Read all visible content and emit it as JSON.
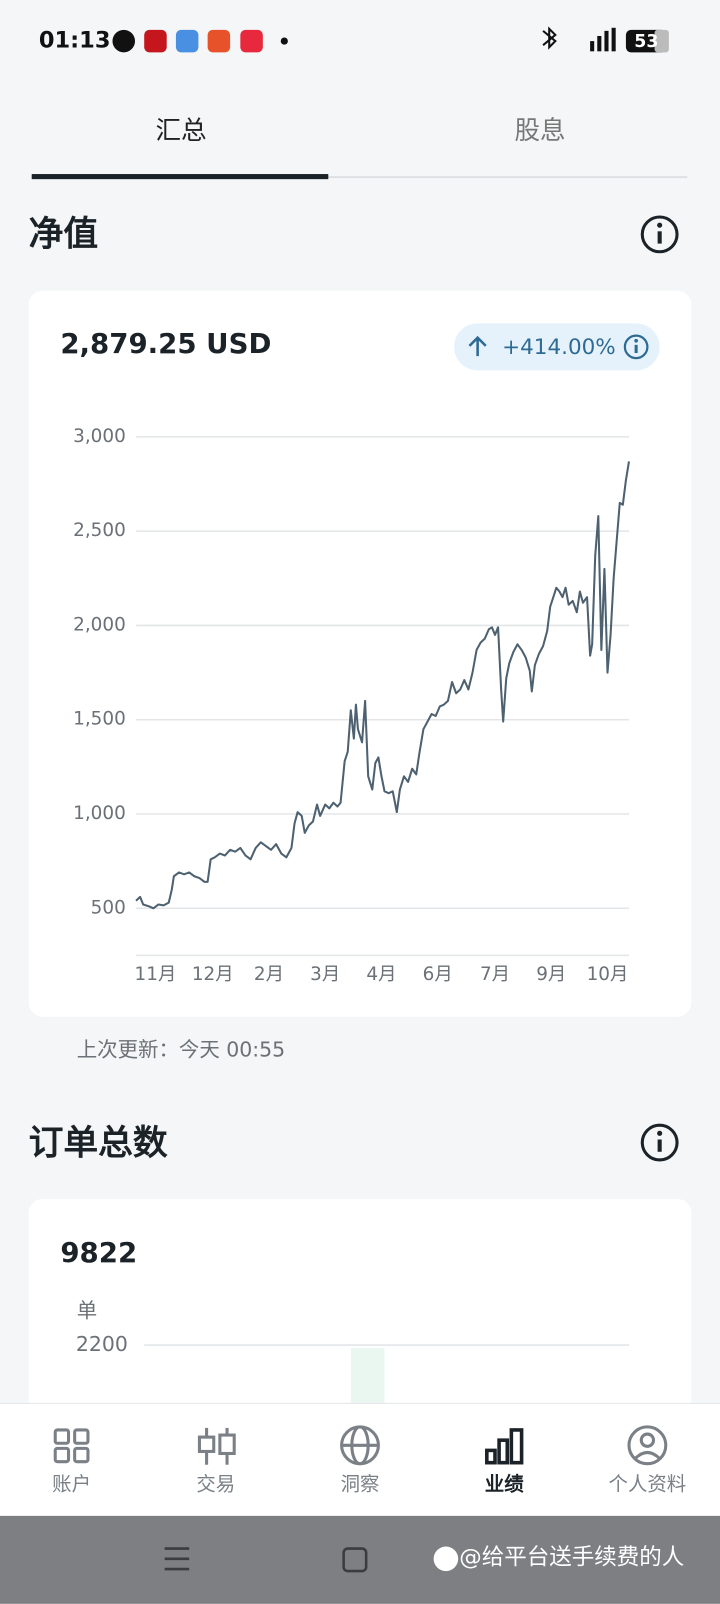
{
  "status_bar": {
    "time": "01:13",
    "battery": "53"
  },
  "tabs": [
    "汇总",
    "股息"
  ],
  "net_value": {
    "title": "净值",
    "amount": "2,879.25 USD",
    "change": "+414.00%",
    "updated": "上次更新：今天 00:55",
    "chart_data": {
      "type": "line",
      "color": "#4d6170",
      "grid": true,
      "x": [
        0,
        4,
        7,
        13,
        17,
        22,
        27,
        32,
        35,
        37,
        42,
        47,
        52,
        57,
        62,
        67,
        70,
        73,
        77,
        82,
        87,
        92,
        97,
        102,
        107,
        112,
        117,
        122,
        127,
        132,
        137,
        142,
        147,
        152,
        155,
        158,
        162,
        165,
        169,
        173,
        177,
        180,
        185,
        189,
        193,
        197,
        200,
        204,
        207,
        210,
        213,
        215,
        217,
        221,
        224,
        227,
        231,
        234,
        237,
        240,
        243,
        247,
        251,
        255,
        258,
        262,
        266,
        270,
        274,
        277,
        281,
        285,
        289,
        293,
        297,
        301,
        305,
        309,
        313,
        317,
        321,
        325,
        329,
        333,
        337,
        341,
        345,
        348,
        351,
        354,
        357,
        359,
        362,
        365,
        369,
        373,
        377,
        381,
        385,
        387,
        390,
        394,
        398,
        402,
        405,
        408,
        411,
        414,
        417,
        420,
        423,
        427,
        431,
        434,
        437,
        441,
        444,
        446,
        449,
        452,
        455,
        458,
        461,
        464,
        467,
        470,
        473,
        476,
        479,
        482
      ],
      "values": [
        540,
        560,
        520,
        510,
        500,
        520,
        515,
        530,
        600,
        670,
        690,
        680,
        690,
        670,
        660,
        640,
        640,
        760,
        770,
        790,
        780,
        810,
        800,
        820,
        780,
        760,
        820,
        850,
        830,
        810,
        840,
        790,
        770,
        820,
        950,
        1010,
        990,
        900,
        940,
        960,
        1050,
        990,
        1050,
        1030,
        1060,
        1040,
        1060,
        1280,
        1330,
        1550,
        1400,
        1580,
        1450,
        1380,
        1600,
        1200,
        1130,
        1270,
        1300,
        1200,
        1120,
        1110,
        1120,
        1010,
        1130,
        1200,
        1170,
        1240,
        1210,
        1320,
        1450,
        1490,
        1530,
        1520,
        1570,
        1580,
        1600,
        1700,
        1640,
        1660,
        1710,
        1660,
        1750,
        1870,
        1910,
        1930,
        1980,
        1990,
        1950,
        1990,
        1660,
        1490,
        1720,
        1800,
        1860,
        1900,
        1870,
        1830,
        1760,
        1650,
        1790,
        1850,
        1890,
        1970,
        2100,
        2150,
        2200,
        2180,
        2150,
        2200,
        2110,
        2130,
        2070,
        2180,
        2120,
        2150,
        1840,
        1900,
        2370,
        2580,
        1870,
        2300,
        1750,
        1950,
        2250,
        2450,
        2650,
        2640,
        2770,
        2870
      ],
      "xlim": [
        0,
        482
      ],
      "xticks": [
        {
          "value": 19,
          "label": "11月"
        },
        {
          "value": 75,
          "label": "12月"
        },
        {
          "value": 130,
          "label": "2月"
        },
        {
          "value": 185,
          "label": "3月"
        },
        {
          "value": 240,
          "label": "4月"
        },
        {
          "value": 295,
          "label": "6月"
        },
        {
          "value": 351,
          "label": "7月"
        },
        {
          "value": 406,
          "label": "9月"
        },
        {
          "value": 461,
          "label": "10月"
        }
      ],
      "ylim": [
        250,
        3000
      ],
      "yticks": [
        {
          "value": 500,
          "label": "500"
        },
        {
          "value": 1000,
          "label": "1,000"
        },
        {
          "value": 1500,
          "label": "1,500"
        },
        {
          "value": 2000,
          "label": "2,000"
        },
        {
          "value": 2500,
          "label": "2,500"
        },
        {
          "value": 3000,
          "label": "3,000"
        }
      ]
    }
  },
  "orders": {
    "title": "订单总数",
    "total": "9822",
    "unit": "单",
    "yticks": [
      2200
    ]
  },
  "nav": [
    "账户",
    "交易",
    "洞察",
    "业绩",
    "个人资料"
  ],
  "watermark": "@给平台送手续费的人"
}
